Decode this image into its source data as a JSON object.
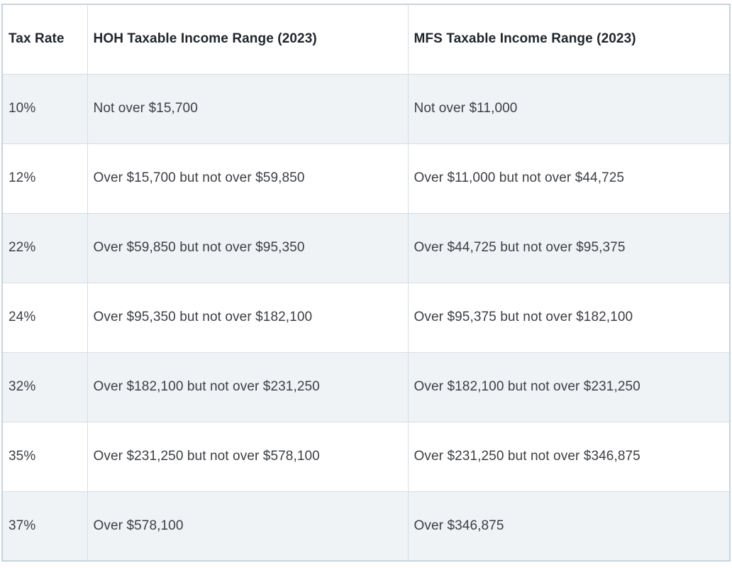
{
  "chart_data": {
    "type": "table",
    "columns": [
      "Tax Rate",
      "HOH Taxable Income Range (2023)",
      "MFS Taxable Income Range (2023)"
    ],
    "rows": [
      [
        "10%",
        "Not over $15,700",
        "Not over $11,000"
      ],
      [
        "12%",
        "Over $15,700 but not over $59,850",
        "Over $11,000 but not over $44,725"
      ],
      [
        "22%",
        "Over $59,850 but not over $95,350",
        "Over $44,725 but not over $95,375"
      ],
      [
        "24%",
        "Over $95,350 but not over $182,100",
        "Over $95,375 but not over $182,100"
      ],
      [
        "32%",
        "Over $182,100 but not over $231,250",
        "Over $182,100 but not over $231,250"
      ],
      [
        "35%",
        "Over $231,250 but not over $578,100",
        "Over $231,250 but not over $346,875"
      ],
      [
        "37%",
        "Over $578,100",
        "Over $346,875"
      ]
    ]
  },
  "colors": {
    "row_alt_bg": "#eff3f6",
    "row_bg": "#ffffff",
    "border": "#d5dee5",
    "outer_border": "#c7d3dc",
    "header_text": "#21262c",
    "body_text": "#3c3f43"
  }
}
